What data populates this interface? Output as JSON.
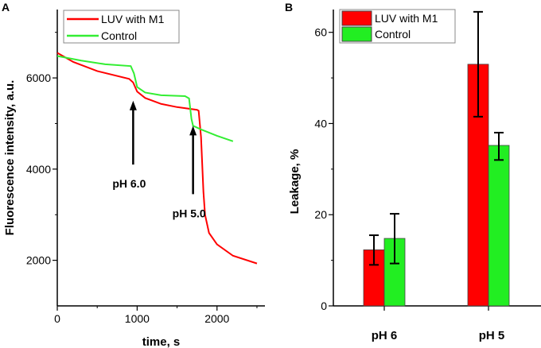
{
  "chart_data": [
    {
      "type": "line",
      "panel_label": "A",
      "xlabel": "time, s",
      "ylabel": "Fluorescence intensity, a.u.",
      "xlim": [
        0,
        2600
      ],
      "ylim": [
        1000,
        7500
      ],
      "xticks": [
        0,
        1000,
        2000
      ],
      "yticks": [
        2000,
        4000,
        6000
      ],
      "grid": false,
      "legend_position": "top-left",
      "series": [
        {
          "name": "LUV with M1",
          "color": "#ff0000",
          "points": [
            [
              0,
              6550
            ],
            [
              200,
              6350
            ],
            [
              500,
              6150
            ],
            [
              900,
              5980
            ],
            [
              950,
              5900
            ],
            [
              1000,
              5700
            ],
            [
              1100,
              5560
            ],
            [
              1300,
              5430
            ],
            [
              1500,
              5360
            ],
            [
              1750,
              5300
            ],
            [
              1770,
              5280
            ],
            [
              1800,
              4700
            ],
            [
              1830,
              3500
            ],
            [
              1850,
              3000
            ],
            [
              1900,
              2600
            ],
            [
              2000,
              2350
            ],
            [
              2200,
              2100
            ],
            [
              2500,
              1930
            ]
          ]
        },
        {
          "name": "Control",
          "color": "#33ee33",
          "points": [
            [
              0,
              6480
            ],
            [
              300,
              6380
            ],
            [
              600,
              6300
            ],
            [
              920,
              6260
            ],
            [
              960,
              6100
            ],
            [
              1000,
              5800
            ],
            [
              1100,
              5680
            ],
            [
              1300,
              5620
            ],
            [
              1600,
              5600
            ],
            [
              1650,
              5550
            ],
            [
              1680,
              5100
            ],
            [
              1700,
              4950
            ],
            [
              1800,
              4870
            ],
            [
              2000,
              4730
            ],
            [
              2200,
              4610
            ]
          ]
        }
      ],
      "annotations": [
        {
          "text": "pH 6.0",
          "x": 950,
          "arrow_from": 4100,
          "arrow_to": 5500
        },
        {
          "text": "pH 5.0",
          "x": 1700,
          "arrow_from": 3450,
          "arrow_to": 4950
        }
      ]
    },
    {
      "type": "bar",
      "panel_label": "B",
      "xlabel": "",
      "ylabel": "Leakage, %",
      "ylim": [
        0,
        65
      ],
      "yticks": [
        0,
        20,
        40,
        60
      ],
      "categories": [
        "pH 6",
        "pH 5"
      ],
      "grid": false,
      "legend_position": "top-left",
      "series": [
        {
          "name": "LUV with M1",
          "color": "#ff0000",
          "values": [
            12.3,
            53.0
          ],
          "err_low": [
            9.0,
            41.5
          ],
          "err_high": [
            15.5,
            64.5
          ]
        },
        {
          "name": "Control",
          "color": "#22ee22",
          "values": [
            14.8,
            35.2
          ],
          "err_low": [
            9.3,
            32.0
          ],
          "err_high": [
            20.2,
            38.0
          ]
        }
      ]
    }
  ]
}
